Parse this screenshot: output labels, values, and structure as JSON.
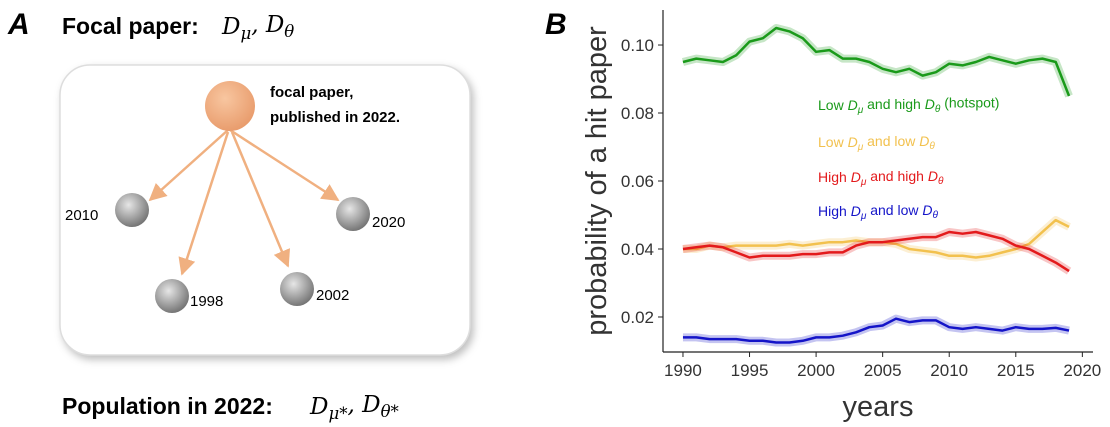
{
  "panel_a": {
    "label": "A",
    "title": "Focal paper:",
    "title_math": "Dμ, Dθ",
    "focal": [
      "focal paper,",
      "published in 2022."
    ],
    "references": [
      "2010",
      "2020",
      "1998",
      "2002"
    ],
    "population": "Population in 2022:",
    "population_math": "Dμ*, Dθ*"
  },
  "chart_data": {
    "type": "line",
    "panel_label": "B",
    "x_label": "years",
    "y_label": "probability of a hit paper",
    "x": [
      1990,
      1991,
      1992,
      1993,
      1994,
      1995,
      1996,
      1997,
      1998,
      1999,
      2000,
      2001,
      2002,
      2003,
      2004,
      2005,
      2006,
      2007,
      2008,
      2009,
      2010,
      2011,
      2012,
      2013,
      2014,
      2015,
      2016,
      2017,
      2018,
      2019
    ],
    "series": [
      {
        "name": "Low Dμ and high Dθ (hotspot)",
        "color": "#1a9a1a",
        "values": [
          0.095,
          0.096,
          0.0955,
          0.095,
          0.097,
          0.101,
          0.102,
          0.105,
          0.104,
          0.102,
          0.098,
          0.0985,
          0.096,
          0.096,
          0.095,
          0.093,
          0.092,
          0.093,
          0.091,
          0.092,
          0.0945,
          0.094,
          0.095,
          0.0965,
          0.0955,
          0.0945,
          0.0955,
          0.096,
          0.095,
          0.085
        ]
      },
      {
        "name": "Low Dμ and low Dθ",
        "color": "#f2c14e",
        "values": [
          0.04,
          0.04,
          0.041,
          0.0405,
          0.041,
          0.041,
          0.041,
          0.041,
          0.0415,
          0.041,
          0.0415,
          0.042,
          0.042,
          0.0425,
          0.042,
          0.042,
          0.0415,
          0.04,
          0.0395,
          0.039,
          0.038,
          0.038,
          0.0375,
          0.038,
          0.039,
          0.04,
          0.0415,
          0.045,
          0.0485,
          0.0465
        ]
      },
      {
        "name": "High Dμ and high Dθ",
        "color": "#e31a1c",
        "values": [
          0.04,
          0.0405,
          0.041,
          0.0405,
          0.039,
          0.0375,
          0.038,
          0.038,
          0.038,
          0.0385,
          0.0385,
          0.039,
          0.039,
          0.041,
          0.042,
          0.042,
          0.0425,
          0.043,
          0.0435,
          0.0435,
          0.045,
          0.0445,
          0.045,
          0.044,
          0.043,
          0.041,
          0.04,
          0.038,
          0.036,
          0.0335
        ]
      },
      {
        "name": "High Dμ and low Dθ",
        "color": "#1414c8",
        "values": [
          0.014,
          0.014,
          0.0135,
          0.0135,
          0.0135,
          0.013,
          0.013,
          0.0125,
          0.0125,
          0.013,
          0.014,
          0.014,
          0.0145,
          0.0155,
          0.017,
          0.0175,
          0.0195,
          0.0185,
          0.019,
          0.019,
          0.017,
          0.0165,
          0.017,
          0.0165,
          0.016,
          0.017,
          0.0165,
          0.0165,
          0.0168,
          0.016
        ]
      }
    ],
    "xlim": [
      1988.5,
      2020.8
    ],
    "xticks": [
      1990,
      1995,
      2000,
      2005,
      2010,
      2015,
      2020
    ],
    "ylim": [
      0.0097,
      0.1103
    ],
    "yticks": [
      0.02,
      0.04,
      0.06,
      0.08,
      {
        "value": 0.1,
        "label": "0.10"
      }
    ],
    "grid": false
  }
}
